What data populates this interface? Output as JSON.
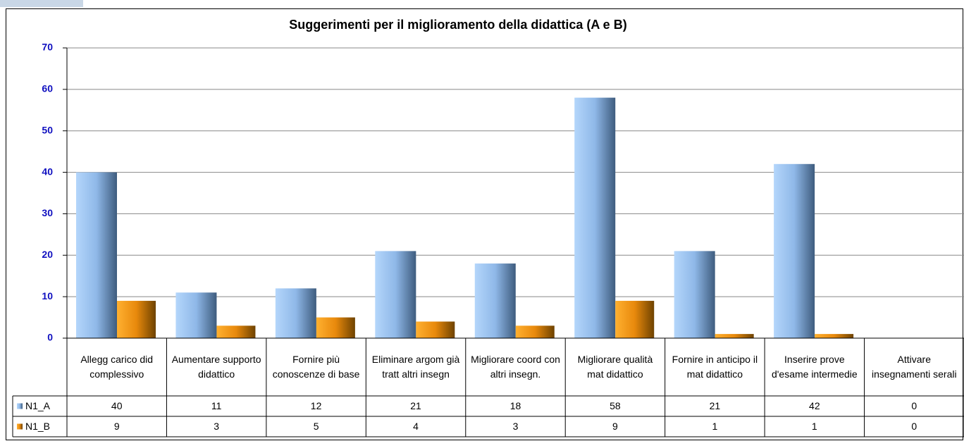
{
  "chart_data": {
    "type": "bar",
    "title": "Suggerimenti per il miglioramento della didattica (A e B)",
    "categories": [
      "Allegg carico did complessivo",
      "Aumentare supporto didattico",
      "Fornire più conoscenze di base",
      "Eliminare argom già tratt altri insegn",
      "Migliorare coord con altri insegn.",
      "Migliorare qualità mat didattico",
      "Fornire in anticipo il mat didattico",
      "Inserire prove d'esame intermedie",
      "Attivare insegnamenti serali"
    ],
    "series": [
      {
        "name": "N1_A",
        "color": "#8fb8e8",
        "values": [
          40,
          11,
          12,
          21,
          18,
          58,
          21,
          42,
          0
        ]
      },
      {
        "name": "N1_B",
        "color": "#e8890c",
        "values": [
          9,
          3,
          5,
          4,
          3,
          9,
          1,
          1,
          0
        ]
      }
    ],
    "ylim": [
      0,
      70
    ],
    "yticks": [
      0,
      10,
      20,
      30,
      40,
      50,
      60,
      70
    ],
    "grid": true
  }
}
